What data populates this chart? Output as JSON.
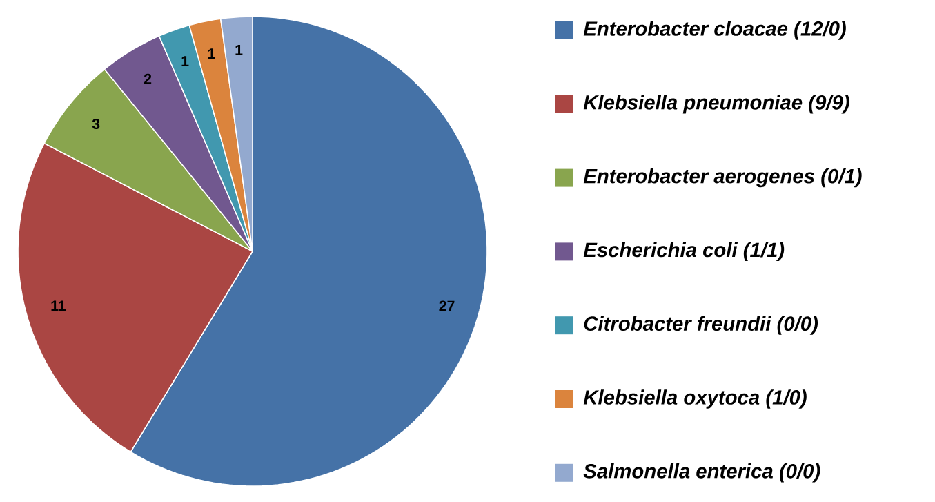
{
  "chart_data": {
    "type": "pie",
    "categories": [
      "Enterobacter cloacae (12/0)",
      "Klebsiella pneumoniae (9/9)",
      "Enterobacter aerogenes (0/1)",
      "Escherichia coli (1/1)",
      "Citrobacter freundii (0/0)",
      "Klebsiella oxytoca (1/0)",
      "Salmonella enterica (0/0)"
    ],
    "values": [
      27,
      11,
      3,
      2,
      1,
      1,
      1
    ],
    "colors": [
      "#4572a7",
      "#aa4643",
      "#89a54e",
      "#71588f",
      "#4198af",
      "#db843d",
      "#93a9cf"
    ],
    "data_labels": true,
    "legend": "right"
  }
}
